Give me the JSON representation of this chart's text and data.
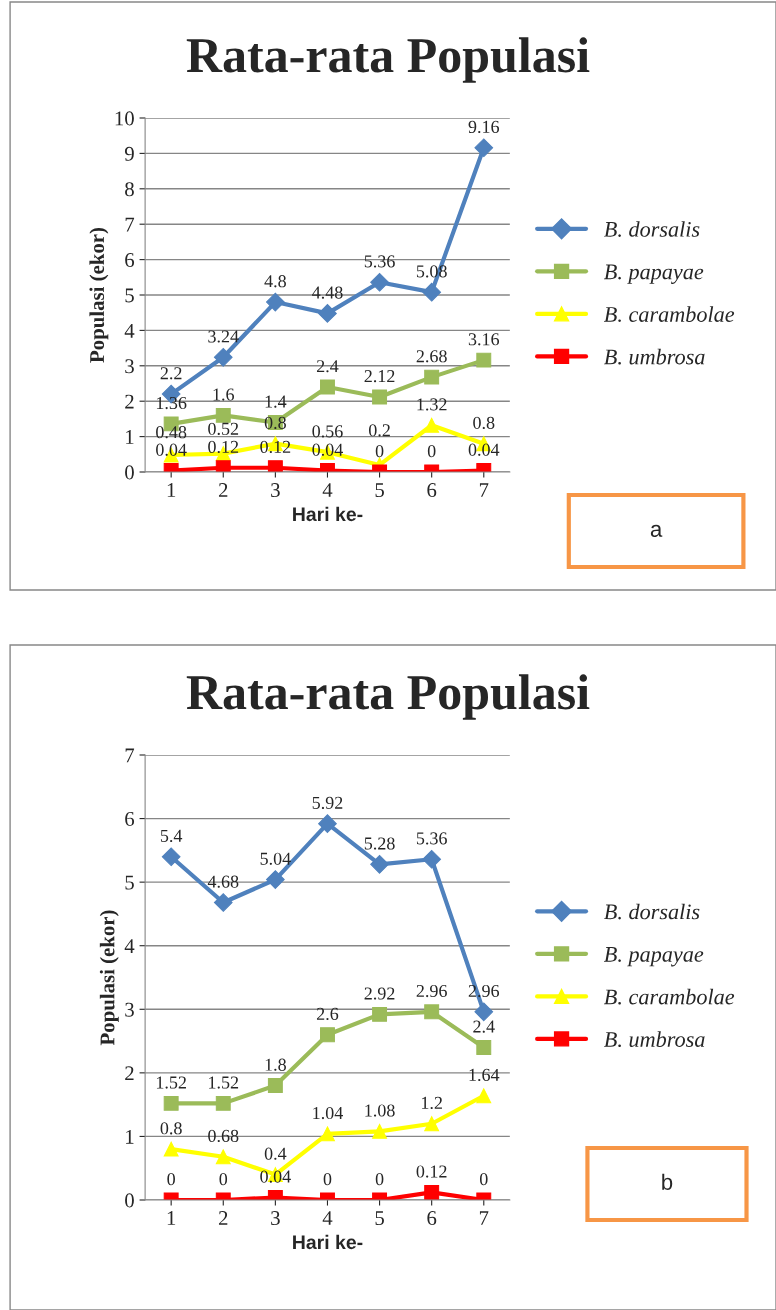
{
  "chart_data": [
    {
      "type": "line",
      "title": "Rata-rata Populasi",
      "xlabel": "Hari ke-",
      "ylabel": "Populasi (ekor)",
      "categories": [
        "1",
        "2",
        "3",
        "4",
        "5",
        "6",
        "7"
      ],
      "ylim": [
        0,
        10
      ],
      "yticks": [
        0,
        1,
        2,
        3,
        4,
        5,
        6,
        7,
        8,
        9,
        10
      ],
      "grid": "y",
      "legend": "right",
      "data_labels": true,
      "annotations": [
        "a"
      ],
      "series": [
        {
          "name": "B. dorsalis",
          "color": "#4f81bd",
          "marker": "diamond",
          "values": [
            2.2,
            3.24,
            4.8,
            4.48,
            5.36,
            5.08,
            9.16
          ]
        },
        {
          "name": "B. papayae",
          "color": "#9bbb59",
          "marker": "square",
          "values": [
            1.36,
            1.6,
            1.4,
            2.4,
            2.12,
            2.68,
            3.16
          ]
        },
        {
          "name": "B. carambolae",
          "color": "#ffff00",
          "marker": "triangle",
          "values": [
            0.48,
            0.52,
            0.8,
            0.56,
            0.2,
            1.32,
            0.8
          ]
        },
        {
          "name": "B. umbrosa",
          "color": "#ff0000",
          "marker": "square",
          "values": [
            0.04,
            0.12,
            0.12,
            0.04,
            0,
            0,
            0.04
          ]
        }
      ]
    },
    {
      "type": "line",
      "title": "Rata-rata Populasi",
      "xlabel": "Hari ke-",
      "ylabel": "Populasi (ekor)",
      "categories": [
        "1",
        "2",
        "3",
        "4",
        "5",
        "6",
        "7"
      ],
      "ylim": [
        0,
        7
      ],
      "yticks": [
        0,
        1,
        2,
        3,
        4,
        5,
        6,
        7
      ],
      "grid": "y",
      "legend": "right",
      "data_labels": true,
      "annotations": [
        "b"
      ],
      "series": [
        {
          "name": "B. dorsalis",
          "color": "#4f81bd",
          "marker": "diamond",
          "values": [
            5.4,
            4.68,
            5.04,
            5.92,
            5.28,
            5.36,
            2.96
          ]
        },
        {
          "name": "B. papayae",
          "color": "#9bbb59",
          "marker": "square",
          "values": [
            1.52,
            1.52,
            1.8,
            2.6,
            2.92,
            2.96,
            2.4
          ]
        },
        {
          "name": "B. carambolae",
          "color": "#ffff00",
          "marker": "triangle",
          "values": [
            0.8,
            0.68,
            0.4,
            1.04,
            1.08,
            1.2,
            1.64
          ]
        },
        {
          "name": "B. umbrosa",
          "color": "#ff0000",
          "marker": "square",
          "values": [
            0,
            0,
            0.04,
            0,
            0,
            0.12,
            0
          ]
        }
      ]
    }
  ]
}
